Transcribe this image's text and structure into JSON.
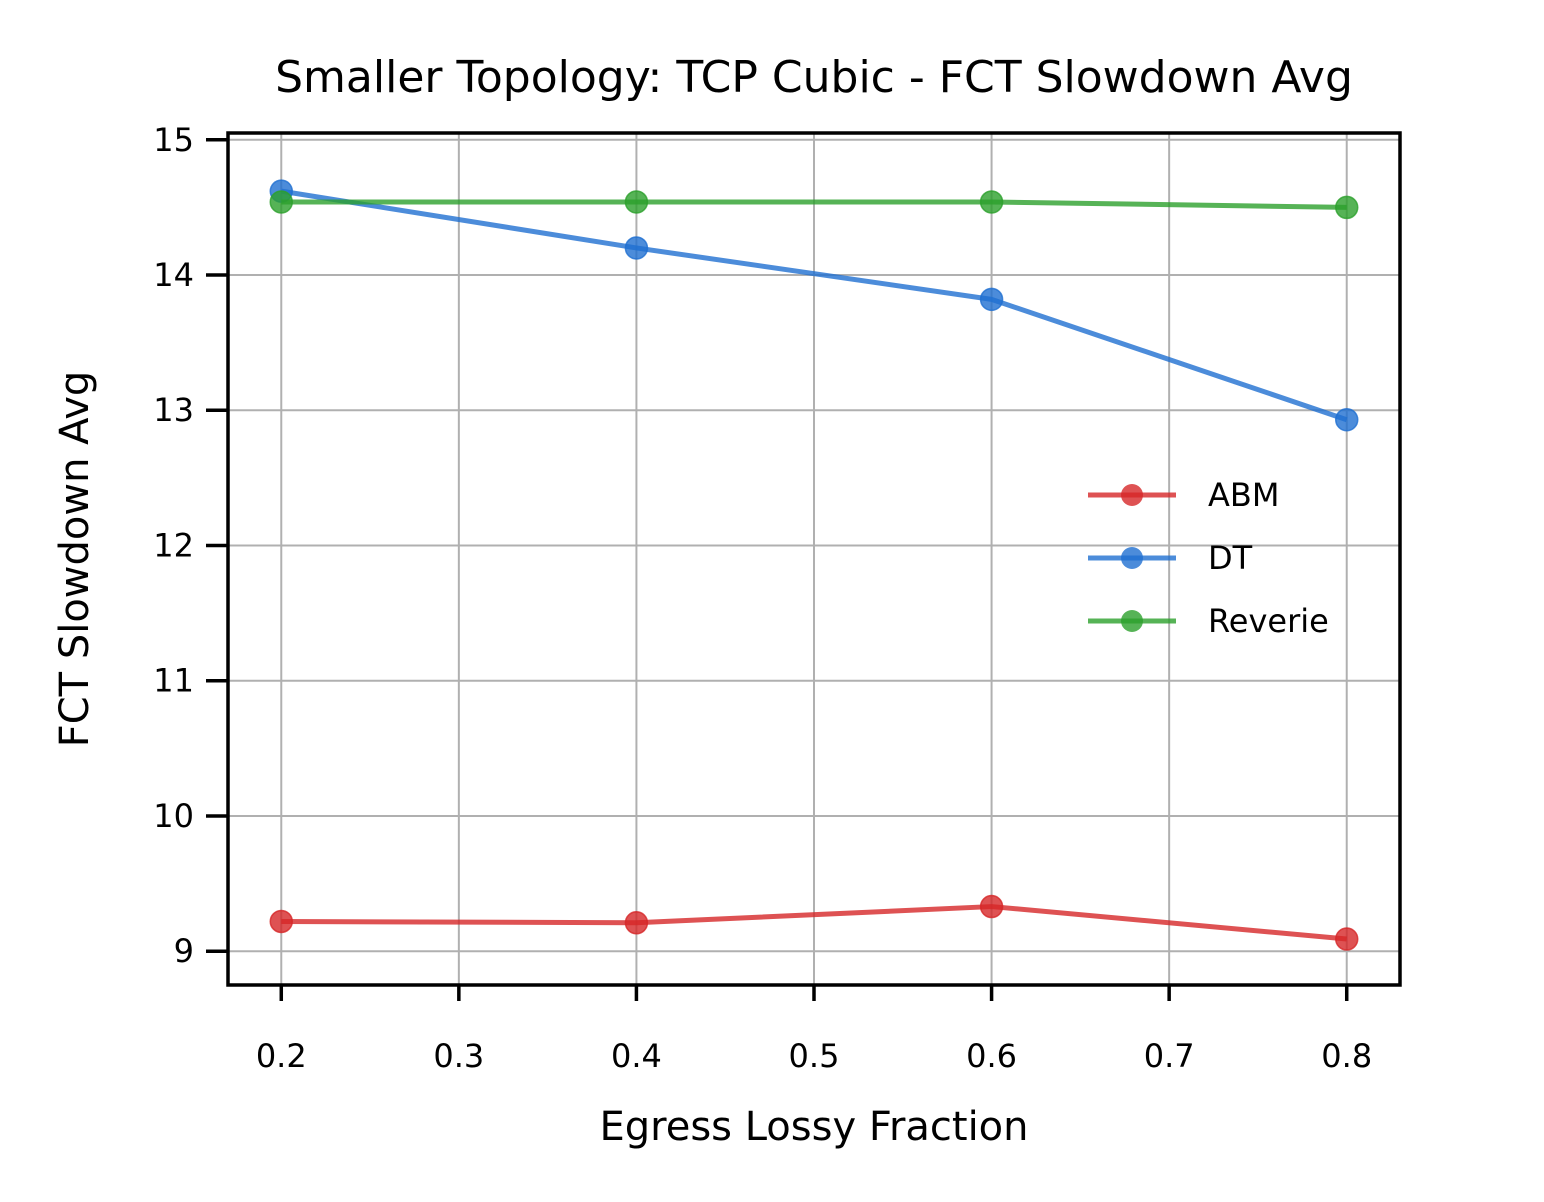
{
  "chart_data": {
    "type": "line",
    "title": "Smaller Topology: TCP Cubic - FCT Slowdown Avg",
    "xlabel": "Egress Lossy Fraction",
    "ylabel": "FCT Slowdown Avg",
    "xlim": [
      0.17,
      0.83
    ],
    "ylim": [
      8.75,
      15.05
    ],
    "xticks": [
      0.2,
      0.3,
      0.4,
      0.5,
      0.6,
      0.7,
      0.8
    ],
    "xtick_labels": [
      "0.2",
      "0.3",
      "0.4",
      "0.5",
      "0.6",
      "0.7",
      "0.8"
    ],
    "yticks": [
      9,
      10,
      11,
      12,
      13,
      14,
      15
    ],
    "ytick_labels": [
      "9",
      "10",
      "11",
      "12",
      "13",
      "14",
      "15"
    ],
    "grid": true,
    "legend_position": "center-right",
    "x": [
      0.2,
      0.4,
      0.6,
      0.8
    ],
    "series": [
      {
        "name": "ABM",
        "color": "#d62728",
        "values": [
          9.22,
          9.21,
          9.33,
          9.09
        ]
      },
      {
        "name": "DT",
        "color": "#1f6fd1",
        "values": [
          14.62,
          14.2,
          13.82,
          12.93
        ]
      },
      {
        "name": "Reverie",
        "color": "#2ca02c",
        "values": [
          14.54,
          14.54,
          14.54,
          14.5
        ]
      }
    ]
  }
}
